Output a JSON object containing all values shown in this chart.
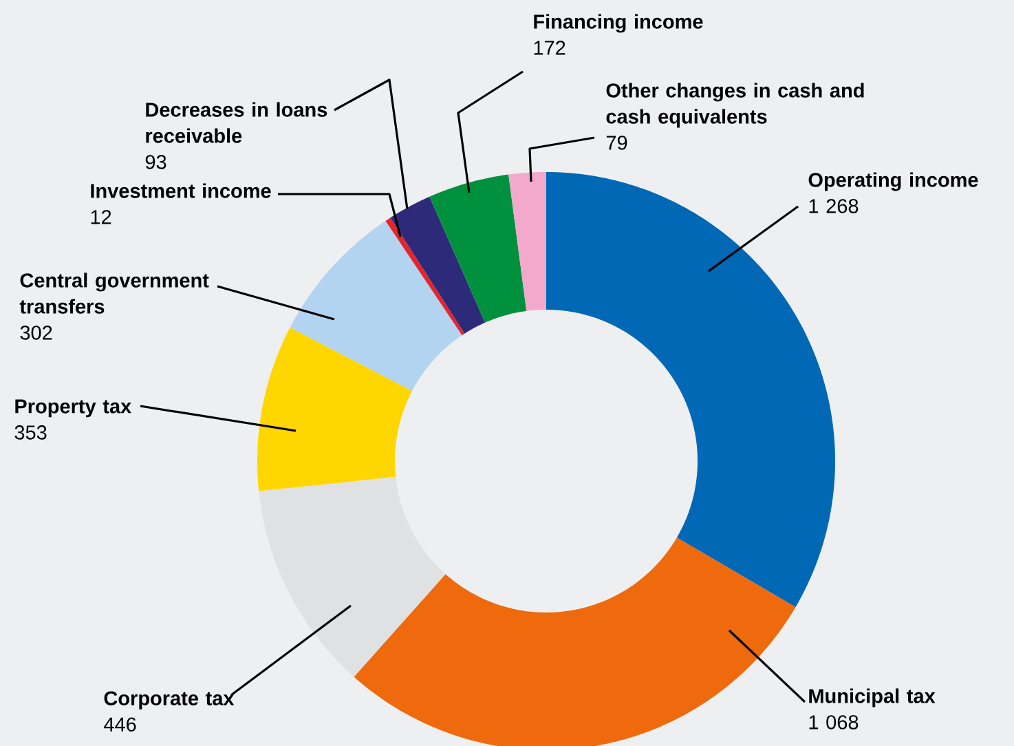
{
  "chart_data": {
    "type": "donut",
    "categories": [
      "Operating income",
      "Municipal tax",
      "Corporate tax",
      "Property tax",
      "Central government transfers",
      "Investment income",
      "Decreases in loans receivable",
      "Financing income",
      "Other changes in cash and cash equivalents"
    ],
    "values": [
      1268,
      1068,
      446,
      353,
      302,
      12,
      93,
      172,
      79
    ],
    "value_labels": [
      "1 268",
      "1 068",
      "446",
      "353",
      "302",
      "12",
      "93",
      "172",
      "79"
    ],
    "colors": [
      "#0068b4",
      "#ee6a0c",
      "#e0e1e2",
      "#ffd600",
      "#b3d4f0",
      "#e5242c",
      "#2e2a7a",
      "#00913f",
      "#f3a9cb"
    ]
  }
}
